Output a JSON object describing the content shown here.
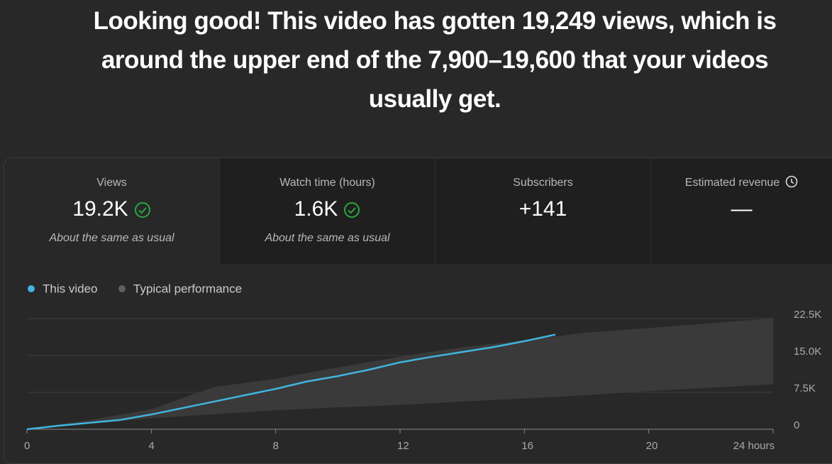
{
  "header": {
    "title_lines": [
      "Looking good! This video has gotten 19,249 views, which is",
      "around the upper end of the 7,900–19,600 that your videos",
      "usually get."
    ]
  },
  "cards": [
    {
      "label": "Views",
      "value": "19.2K",
      "note": "About the same as usual"
    },
    {
      "label": "Watch time (hours)",
      "value": "1.6K",
      "note": "About the same as usual"
    },
    {
      "label": "Subscribers",
      "value": "+141"
    },
    {
      "label": "Estimated revenue",
      "value": "—"
    }
  ],
  "chart_data": {
    "type": "line",
    "series": [
      {
        "name": "This video",
        "color": "#41b4e0",
        "x": [
          0,
          1,
          2,
          3,
          4,
          5,
          6,
          7,
          8,
          9,
          10,
          11,
          12,
          13,
          14,
          15,
          16,
          17
        ],
        "values": [
          0,
          700,
          1300,
          1900,
          3000,
          4300,
          5600,
          6900,
          8200,
          9700,
          10800,
          12100,
          13600,
          14700,
          15700,
          16700,
          17900,
          19249
        ]
      },
      {
        "name": "Typical performance",
        "color": "#606060",
        "fill": "#3a3a3a",
        "x": [
          0,
          2,
          4,
          6,
          8,
          10,
          12,
          14,
          16,
          18,
          20,
          22,
          24
        ],
        "high": [
          0,
          1800,
          4000,
          8500,
          10200,
          12500,
          14700,
          16600,
          18000,
          19600,
          20500,
          21500,
          22500
        ],
        "low": [
          0,
          1200,
          2300,
          3100,
          3900,
          4500,
          5000,
          5700,
          6300,
          7000,
          7800,
          8500,
          9200
        ]
      }
    ],
    "xlim": [
      0,
      24
    ],
    "xticks": [
      0,
      4,
      8,
      12,
      16,
      20,
      {
        "value": 24,
        "label": "24 hours"
      }
    ],
    "ylim": [
      0,
      22500
    ],
    "yticks": [
      0,
      {
        "value": 7500,
        "label": "7.5K"
      },
      {
        "value": 15000,
        "label": "15.0K"
      },
      {
        "value": 22500,
        "label": "22.5K"
      }
    ],
    "grid": true
  }
}
